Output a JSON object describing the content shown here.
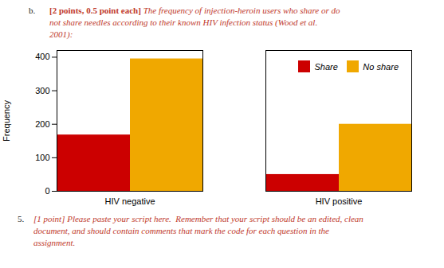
{
  "chart_data": {
    "type": "bar",
    "categories": [
      "HIV negative",
      "HIV positive"
    ],
    "series": [
      {
        "name": "Share",
        "color": "#cc0000",
        "values": [
          168,
          50
        ]
      },
      {
        "name": "No share",
        "color": "#f0a800",
        "values": [
          395,
          200
        ]
      }
    ],
    "ylabel": "Frequency",
    "ylim": [
      0,
      420
    ],
    "yticks": [
      0,
      100,
      200,
      300,
      400
    ],
    "legend": "upper right",
    "grid": false,
    "annotations": [
      {
        "text": "b.",
        "color": "#222222"
      },
      {
        "text": "[2 points, 0.5 point each]",
        "color": "#c0392b"
      },
      {
        "text": "The frequency of injection-heroin users who share or do\nnot share needles according to their known HIV infection status (Wood et al.\n2001):",
        "color": "#c0392b"
      },
      {
        "text": "5.",
        "color": "#222222"
      },
      {
        "text": "[1 point] Please paste your script here.  Remember that your script should be an edited, clean\ndocument, and should contain comments that mark the code for each question in the\nassignment.",
        "color": "#c0392b"
      }
    ]
  }
}
